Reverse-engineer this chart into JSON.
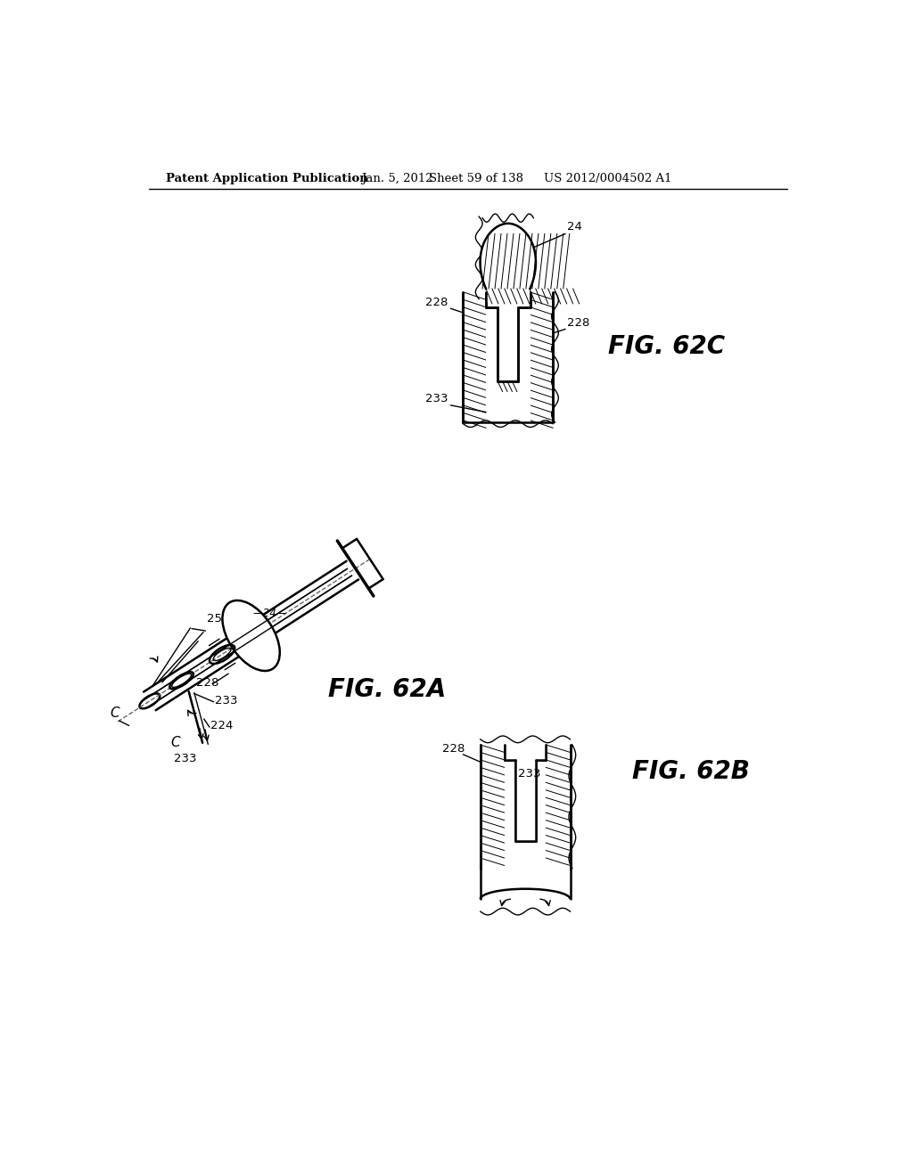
{
  "header_left": "Patent Application Publication",
  "header_mid": "Jan. 5, 2012",
  "header_sheet": "Sheet 59 of 138",
  "header_right": "US 2012/0004502 A1",
  "fig_62a_label": "FIG. 62A",
  "fig_62b_label": "FIG. 62B",
  "fig_62c_label": "FIG. 62C",
  "bg_color": "#ffffff",
  "line_color": "#000000"
}
